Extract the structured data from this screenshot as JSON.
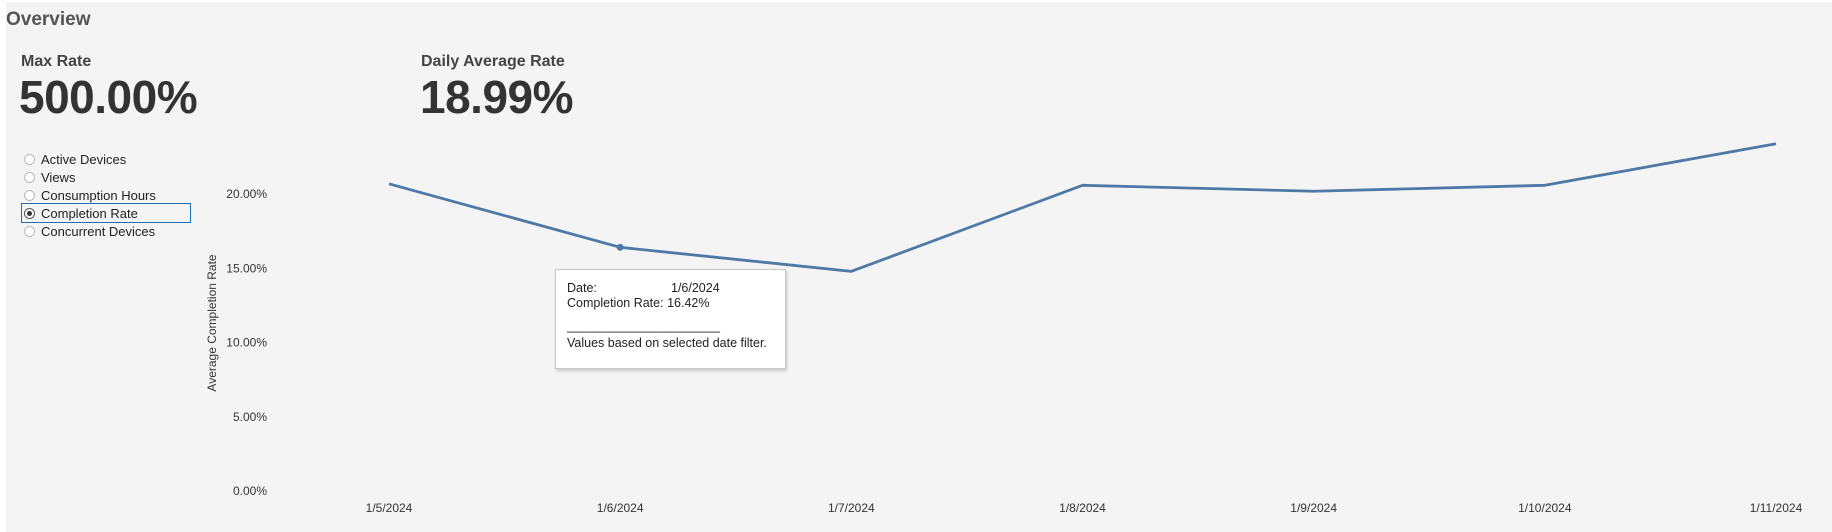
{
  "page": {
    "title": "Overview"
  },
  "kpis": {
    "max_rate": {
      "label": "Max Rate",
      "value": "500.00%"
    },
    "daily_average": {
      "label": "Daily Average Rate",
      "value": "18.99%"
    }
  },
  "metrics": [
    {
      "label": "Active Devices",
      "selected": false
    },
    {
      "label": "Views",
      "selected": false
    },
    {
      "label": "Consumption Hours",
      "selected": false
    },
    {
      "label": "Completion Rate",
      "selected": true
    },
    {
      "label": "Concurrent Devices",
      "selected": false
    }
  ],
  "chart_data": {
    "type": "line",
    "ylabel": "Average Completion Rate",
    "xlabel": "",
    "categories": [
      "1/5/2024",
      "1/6/2024",
      "1/7/2024",
      "1/8/2024",
      "1/9/2024",
      "1/10/2024",
      "1/11/2024"
    ],
    "series": [
      {
        "values": [
          20.7,
          16.42,
          14.8,
          20.6,
          20.2,
          20.6,
          23.4
        ],
        "color": "#4e79a7"
      }
    ],
    "ylim": [
      0,
      25
    ],
    "yticks": [
      0,
      5,
      10,
      15,
      20
    ],
    "ytick_labels": [
      "0.00%",
      "5.00%",
      "10.00%",
      "15.00%",
      "20.00%"
    ],
    "grid": false,
    "highlighted_index": 1
  },
  "tooltip": {
    "date_label": "Date:",
    "date_value": "1/6/2024",
    "rate_label": "Completion Rate:",
    "rate_value": "16.42%",
    "divider": "______________________",
    "note": "Values based on selected date filter."
  }
}
